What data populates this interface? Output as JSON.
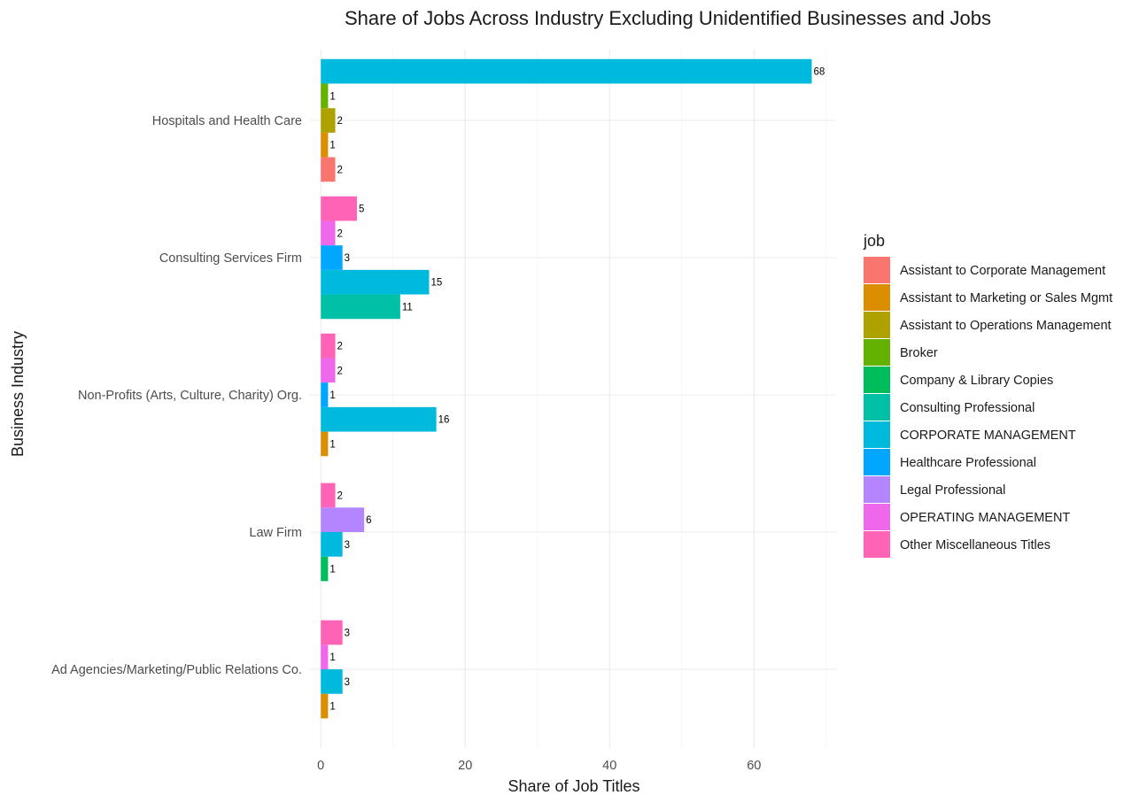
{
  "chart_data": {
    "type": "bar",
    "orientation": "horizontal",
    "title": "Share of Jobs Across Industry Excluding Unidentified Businesses and Jobs",
    "xlabel": "Share of Job Titles",
    "ylabel": "Business Industry",
    "xlim": [
      -1.5,
      71.5
    ],
    "xticks": [
      0,
      20,
      40,
      60
    ],
    "grid": true,
    "legend": {
      "title": "job",
      "position": "right",
      "entries": [
        {
          "name": "Assistant to Corporate Management",
          "color": "#F8766D"
        },
        {
          "name": "Assistant to Marketing or Sales Mgmt",
          "color": "#DB8E00"
        },
        {
          "name": "Assistant to Operations Management",
          "color": "#AEA200"
        },
        {
          "name": "Broker",
          "color": "#64B200"
        },
        {
          "name": "Company & Library Copies",
          "color": "#00BD5C"
        },
        {
          "name": "Consulting Professional",
          "color": "#00C1A7"
        },
        {
          "name": "CORPORATE MANAGEMENT",
          "color": "#00BADE"
        },
        {
          "name": "Healthcare Professional",
          "color": "#00A6FF"
        },
        {
          "name": "Legal Professional",
          "color": "#B385FF"
        },
        {
          "name": "OPERATING MANAGEMENT",
          "color": "#EF67EB"
        },
        {
          "name": "Other Miscellaneous Titles",
          "color": "#FF63B6"
        }
      ]
    },
    "categories": [
      "Hospitals and Health Care",
      "Consulting Services Firm",
      "Non-Profits (Arts, Culture, Charity) Org.",
      "Law Firm",
      "Ad Agencies/Marketing/Public Relations Co."
    ],
    "groups": [
      {
        "category": "Hospitals and Health Care",
        "bars": [
          {
            "job": "CORPORATE MANAGEMENT",
            "value": 68
          },
          {
            "job": "Broker",
            "value": 1
          },
          {
            "job": "Assistant to Operations Management",
            "value": 2
          },
          {
            "job": "Assistant to Marketing or Sales Mgmt",
            "value": 1
          },
          {
            "job": "Assistant to Corporate Management",
            "value": 2
          }
        ]
      },
      {
        "category": "Consulting Services Firm",
        "bars": [
          {
            "job": "Other Miscellaneous Titles",
            "value": 5
          },
          {
            "job": "OPERATING MANAGEMENT",
            "value": 2
          },
          {
            "job": "Healthcare Professional",
            "value": 3
          },
          {
            "job": "CORPORATE MANAGEMENT",
            "value": 15
          },
          {
            "job": "Consulting Professional",
            "value": 11
          }
        ]
      },
      {
        "category": "Non-Profits (Arts, Culture, Charity) Org.",
        "bars": [
          {
            "job": "Other Miscellaneous Titles",
            "value": 2
          },
          {
            "job": "OPERATING MANAGEMENT",
            "value": 2
          },
          {
            "job": "Healthcare Professional",
            "value": 1
          },
          {
            "job": "CORPORATE MANAGEMENT",
            "value": 16
          },
          {
            "job": "Assistant to Marketing or Sales Mgmt",
            "value": 1
          }
        ]
      },
      {
        "category": "Law Firm",
        "bars": [
          {
            "job": "Other Miscellaneous Titles",
            "value": 2
          },
          {
            "job": "Legal Professional",
            "value": 6
          },
          {
            "job": "CORPORATE MANAGEMENT",
            "value": 3
          },
          {
            "job": "Company & Library Copies",
            "value": 1
          }
        ]
      },
      {
        "category": "Ad Agencies/Marketing/Public Relations Co.",
        "bars": [
          {
            "job": "Other Miscellaneous Titles",
            "value": 3
          },
          {
            "job": "OPERATING MANAGEMENT",
            "value": 1
          },
          {
            "job": "CORPORATE MANAGEMENT",
            "value": 3
          },
          {
            "job": "Assistant to Marketing or Sales Mgmt",
            "value": 1
          }
        ]
      }
    ]
  }
}
